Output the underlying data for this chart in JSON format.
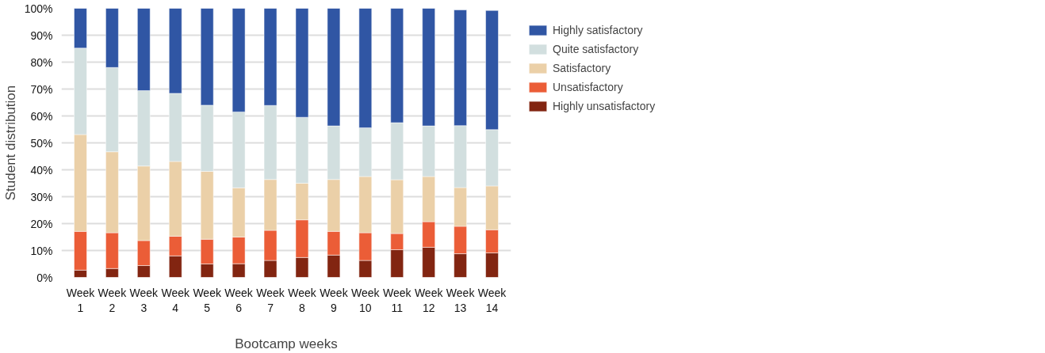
{
  "chart_data": {
    "type": "bar",
    "stacked": true,
    "xlabel": "Bootcamp weeks",
    "ylabel": "Student distribution",
    "categories": [
      "Week 1",
      "Week 2",
      "Week 3",
      "Week 4",
      "Week 5",
      "Week 6",
      "Week 7",
      "Week 8",
      "Week 9",
      "Week 10",
      "Week 11",
      "Week 12",
      "Week 13",
      "Week 14"
    ],
    "series": [
      {
        "name": "Highly unsatisfactory",
        "color": "#822511",
        "values": [
          2.7,
          3.3,
          4.4,
          8.0,
          5.0,
          5.1,
          6.3,
          7.4,
          8.3,
          6.3,
          10.3,
          11.2,
          8.8,
          9.1
        ]
      },
      {
        "name": "Unsatisfactory",
        "color": "#eb5d37",
        "values": [
          14.4,
          13.3,
          9.3,
          7.3,
          9.2,
          9.9,
          11.2,
          14.0,
          8.8,
          10.3,
          6.0,
          9.5,
          10.2,
          8.6
        ]
      },
      {
        "name": "Satisfactory",
        "color": "#ebd0a8",
        "values": [
          36.0,
          30.1,
          27.7,
          27.8,
          25.2,
          18.3,
          18.9,
          13.6,
          19.3,
          20.9,
          20.0,
          16.8,
          14.4,
          16.3
        ]
      },
      {
        "name": "Quite satisfactory",
        "color": "#d2dfdf",
        "values": [
          32.1,
          31.3,
          28.0,
          25.3,
          24.6,
          28.2,
          27.5,
          24.5,
          19.9,
          18.1,
          21.2,
          18.8,
          23.0,
          20.9
        ]
      },
      {
        "name": "Highly satisfactory",
        "color": "#3056a4",
        "values": [
          14.8,
          22.0,
          30.6,
          31.6,
          36.0,
          38.5,
          36.1,
          40.5,
          43.7,
          44.4,
          42.5,
          43.7,
          43.0,
          44.3
        ]
      }
    ],
    "ylim": [
      0,
      100
    ],
    "yticks": [
      {
        "value": 0,
        "label": "0%"
      },
      {
        "value": 10,
        "label": "10%"
      },
      {
        "value": 20,
        "label": "20%"
      },
      {
        "value": 30,
        "label": "30%"
      },
      {
        "value": 40,
        "label": "40%"
      },
      {
        "value": 50,
        "label": "50%"
      },
      {
        "value": 60,
        "label": "60%"
      },
      {
        "value": 70,
        "label": "70%"
      },
      {
        "value": 80,
        "label": "80%"
      },
      {
        "value": 90,
        "label": "90%"
      },
      {
        "value": 100,
        "label": "100%"
      }
    ],
    "grid": "y",
    "legend": "top right"
  }
}
